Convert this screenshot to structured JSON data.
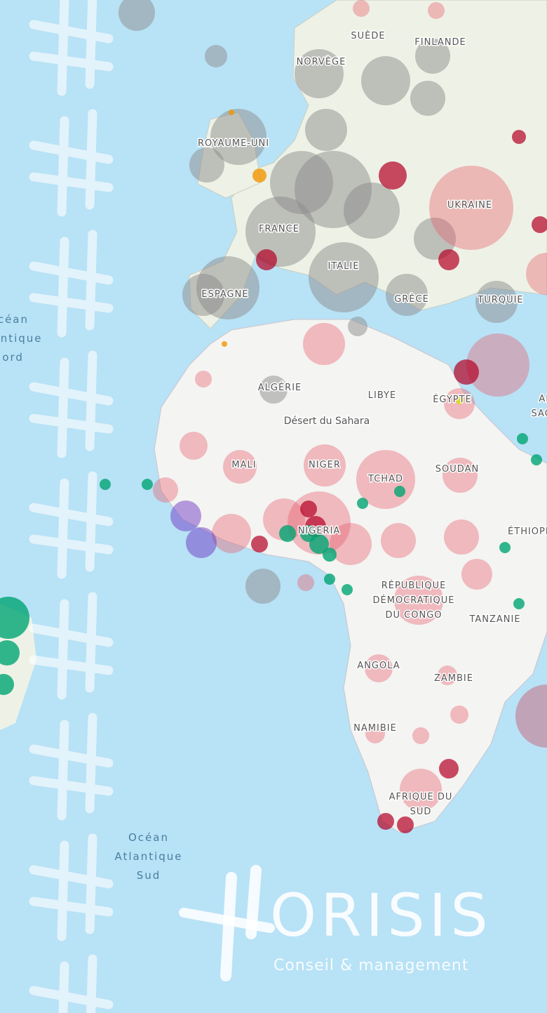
{
  "map": {
    "labels": [
      [
        "SUÈDE"
      ],
      [
        "FINLANDE"
      ],
      [
        "NORVÈGE"
      ],
      [
        "ROYAUME-UNI"
      ],
      [
        "UKRAINE"
      ],
      [
        "FRANCE"
      ],
      [
        "ITALIE"
      ],
      [
        "ESPAGNE"
      ],
      [
        "GRÈCE"
      ],
      [
        "TURQUIE"
      ],
      [
        "ALGÉRIE"
      ],
      [
        "LIBYE"
      ],
      [
        "ÉGYPTE"
      ],
      [
        "ARABIE",
        "SAOUDITE"
      ],
      [
        "MALI"
      ],
      [
        "NIGER"
      ],
      [
        "TCHAD"
      ],
      [
        "SOUDAN"
      ],
      [
        "NIGERIA"
      ],
      [
        "ÉTHIOPIE"
      ],
      [
        "RÉPUBLIQUE",
        "DÉMOCRATIQUE",
        "DU CONGO"
      ],
      [
        "TANZANIE"
      ],
      [
        "ANGOLA"
      ],
      [
        "ZAMBIE"
      ],
      [
        "NAMIBIE"
      ],
      [
        "AFRIQUE DU",
        "SUD"
      ]
    ],
    "region": "Désert du Sahara",
    "oceans": [
      [
        "Océan",
        "Atlantique",
        "Nord"
      ],
      [
        "Océan",
        "Atlantique",
        "Sud"
      ]
    ],
    "logo": {
      "name": "ORISIS",
      "tagline": "Conseil & management"
    }
  }
}
